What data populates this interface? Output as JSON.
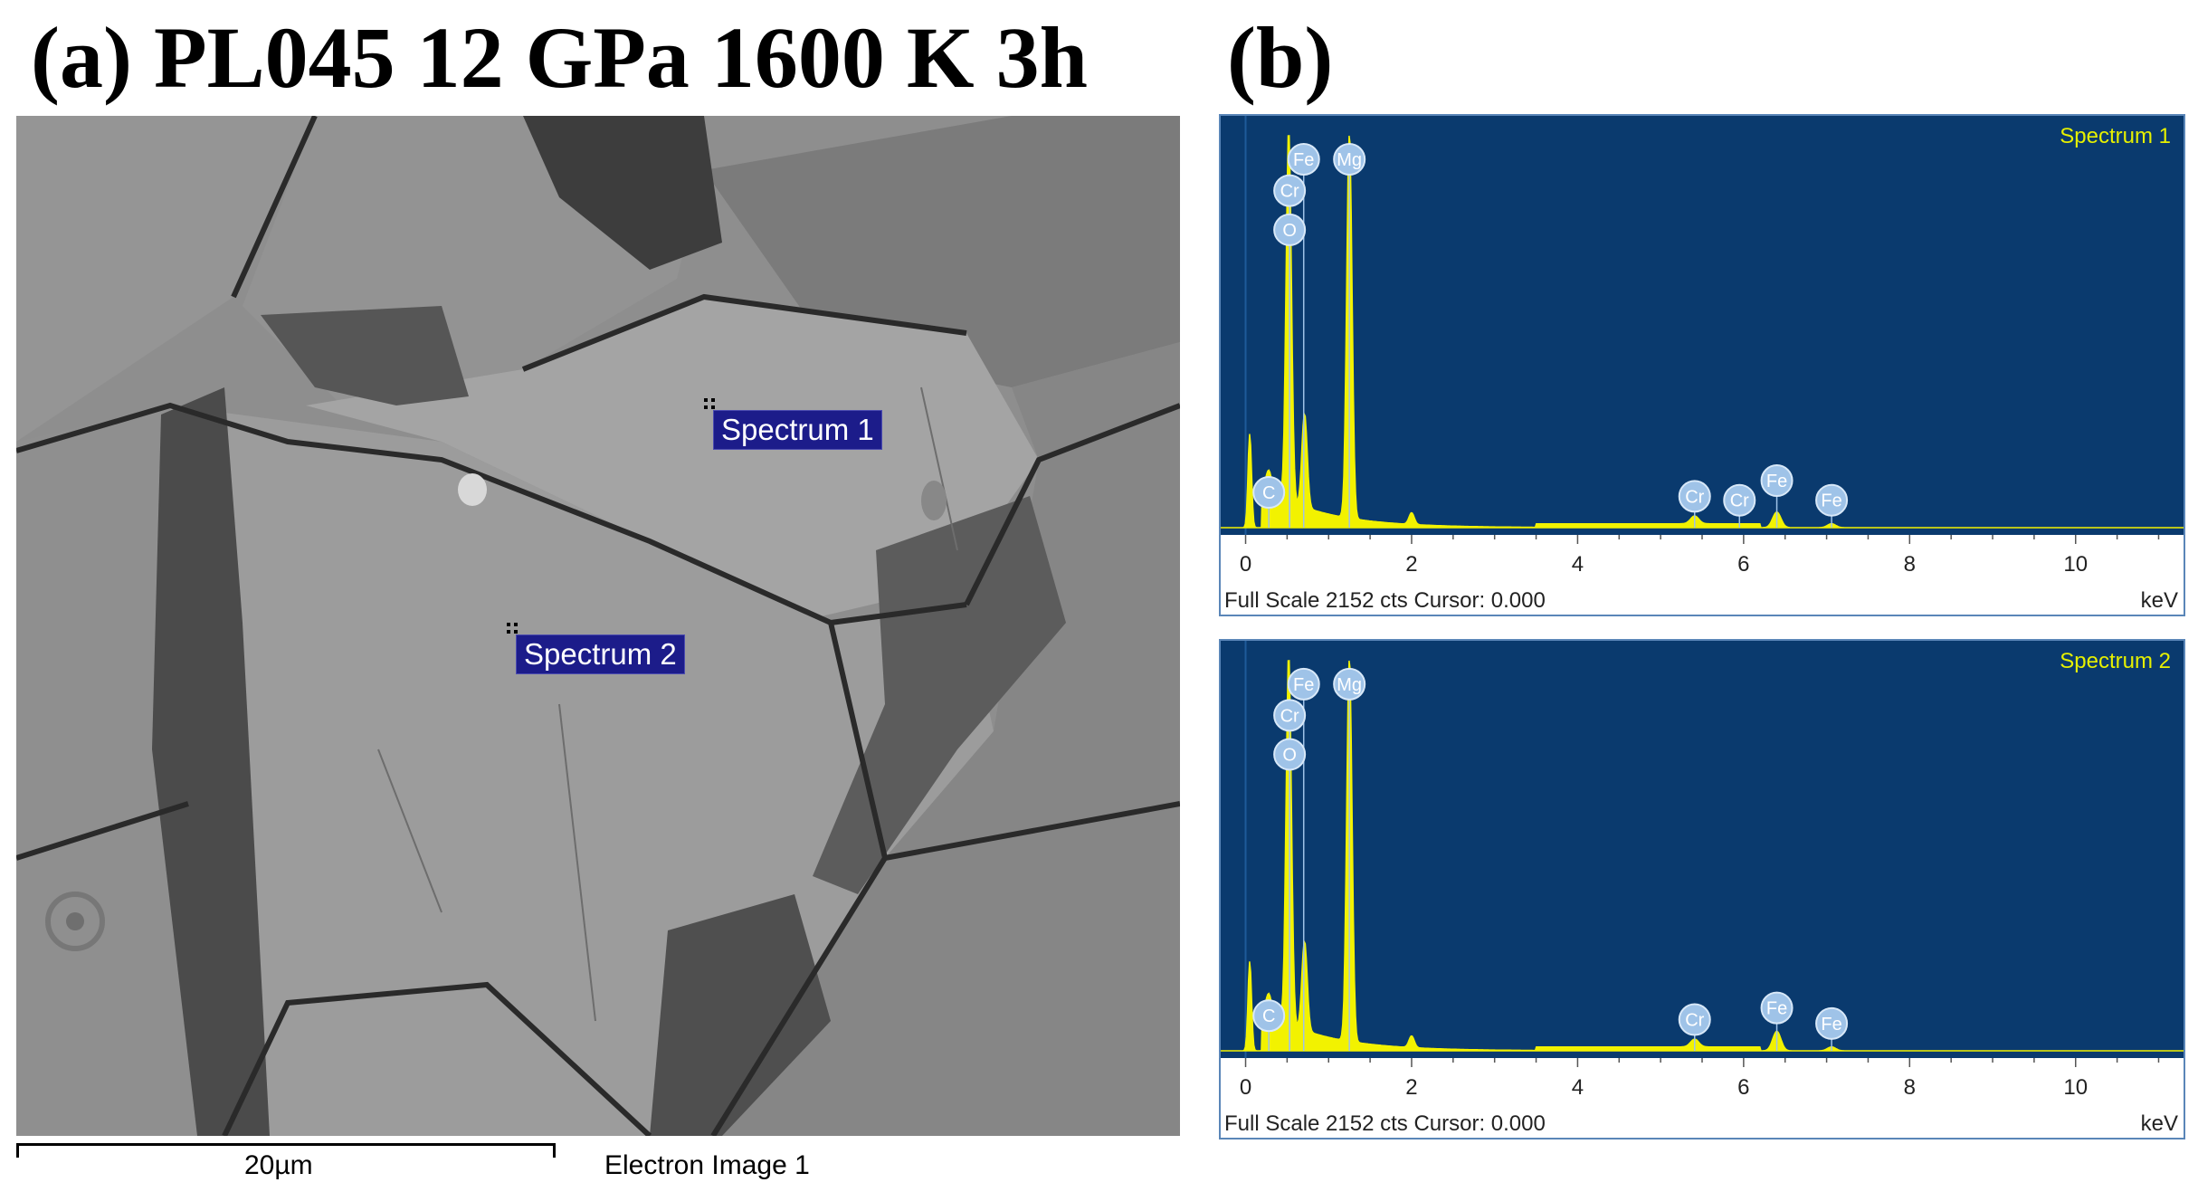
{
  "panel_a": {
    "title": "(a) PL045 12 GPa 1600 K 3h",
    "spectrum_labels": [
      "Spectrum 1",
      "Spectrum 2"
    ],
    "scale_bar_label": "20µm",
    "caption": "Electron Image 1"
  },
  "panel_b": {
    "title": "(b)"
  },
  "chart_data": [
    {
      "type": "area",
      "title": "Spectrum 1",
      "xlabel": "keV",
      "x_ticks": [
        0,
        2,
        4,
        6,
        8,
        10
      ],
      "xlim": [
        -0.3,
        11.3
      ],
      "ylim": [
        0,
        100
      ],
      "footer": "Full Scale 2152 cts Cursor: 0.000",
      "background_color": "#0a3a6e",
      "series_color": "#f2f200",
      "series": [
        {
          "x": [
            0.05,
            0.28,
            0.52,
            0.71,
            1.25,
            2.0,
            5.41,
            6.4,
            7.06
          ],
          "y": [
            24,
            5,
            96,
            24,
            100,
            3,
            2,
            4,
            1
          ]
        }
      ],
      "element_labels": [
        {
          "text": "Fe",
          "x": 0.7,
          "level": 94
        },
        {
          "text": "Mg",
          "x": 1.25,
          "level": 94
        },
        {
          "text": "Cr",
          "x": 0.53,
          "level": 86
        },
        {
          "text": "O",
          "x": 0.53,
          "level": 76
        },
        {
          "text": "C",
          "x": 0.28,
          "level": 9
        },
        {
          "text": "Cr",
          "x": 5.41,
          "level": 8
        },
        {
          "text": "Cr",
          "x": 5.95,
          "level": 7
        },
        {
          "text": "Fe",
          "x": 6.4,
          "level": 12
        },
        {
          "text": "Fe",
          "x": 7.06,
          "level": 7
        }
      ]
    },
    {
      "type": "area",
      "title": "Spectrum 2",
      "xlabel": "keV",
      "x_ticks": [
        0,
        2,
        4,
        6,
        8,
        10
      ],
      "xlim": [
        -0.3,
        11.3
      ],
      "ylim": [
        0,
        100
      ],
      "footer": "Full Scale 2152 cts Cursor: 0.000",
      "background_color": "#0a3a6e",
      "series_color": "#f2f200",
      "series": [
        {
          "x": [
            0.05,
            0.28,
            0.52,
            0.71,
            1.25,
            2.0,
            5.41,
            6.4,
            7.06
          ],
          "y": [
            23,
            5,
            96,
            23,
            100,
            3,
            2,
            5,
            1
          ]
        }
      ],
      "element_labels": [
        {
          "text": "Fe",
          "x": 0.7,
          "level": 94
        },
        {
          "text": "Mg",
          "x": 1.25,
          "level": 94
        },
        {
          "text": "Cr",
          "x": 0.53,
          "level": 86
        },
        {
          "text": "O",
          "x": 0.53,
          "level": 76
        },
        {
          "text": "C",
          "x": 0.28,
          "level": 9
        },
        {
          "text": "Cr",
          "x": 5.41,
          "level": 8
        },
        {
          "text": "Fe",
          "x": 6.4,
          "level": 11
        },
        {
          "text": "Fe",
          "x": 7.06,
          "level": 7
        }
      ]
    }
  ]
}
